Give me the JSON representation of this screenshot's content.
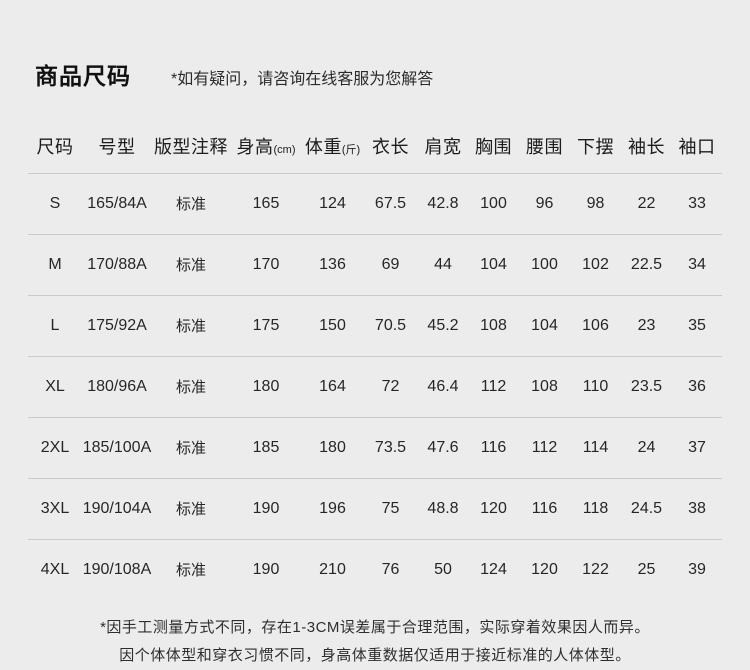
{
  "page": {
    "title": "商品尺码",
    "note": "*如有疑问，请咨询在线客服为您解答"
  },
  "colors": {
    "background": "#ececec",
    "text": "#222222",
    "divider": "#cacaca"
  },
  "table": {
    "headers": [
      {
        "label": "尺码",
        "unit": ""
      },
      {
        "label": "号型",
        "unit": ""
      },
      {
        "label": "版型注释",
        "unit": ""
      },
      {
        "label": "身高",
        "unit": "(cm)"
      },
      {
        "label": "体重",
        "unit": "(斤)"
      },
      {
        "label": "衣长",
        "unit": ""
      },
      {
        "label": "肩宽",
        "unit": ""
      },
      {
        "label": "胸围",
        "unit": ""
      },
      {
        "label": "腰围",
        "unit": ""
      },
      {
        "label": "下摆",
        "unit": ""
      },
      {
        "label": "袖长",
        "unit": ""
      },
      {
        "label": "袖口",
        "unit": ""
      }
    ],
    "rows": [
      [
        "S",
        "165/84A",
        "标准",
        "165",
        "124",
        "67.5",
        "42.8",
        "100",
        "96",
        "98",
        "22",
        "33"
      ],
      [
        "M",
        "170/88A",
        "标准",
        "170",
        "136",
        "69",
        "44",
        "104",
        "100",
        "102",
        "22.5",
        "34"
      ],
      [
        "L",
        "175/92A",
        "标准",
        "175",
        "150",
        "70.5",
        "45.2",
        "108",
        "104",
        "106",
        "23",
        "35"
      ],
      [
        "XL",
        "180/96A",
        "标准",
        "180",
        "164",
        "72",
        "46.4",
        "112",
        "108",
        "110",
        "23.5",
        "36"
      ],
      [
        "2XL",
        "185/100A",
        "标准",
        "185",
        "180",
        "73.5",
        "47.6",
        "116",
        "112",
        "114",
        "24",
        "37"
      ],
      [
        "3XL",
        "190/104A",
        "标准",
        "190",
        "196",
        "75",
        "48.8",
        "120",
        "116",
        "118",
        "24.5",
        "38"
      ],
      [
        "4XL",
        "190/108A",
        "标准",
        "190",
        "210",
        "76",
        "50",
        "124",
        "120",
        "122",
        "25",
        "39"
      ]
    ]
  },
  "footer": {
    "line1": "*因手工测量方式不同，存在1-3CM误差属于合理范围，实际穿着效果因人而异。",
    "line2": "因个体体型和穿衣习惯不同，身高体重数据仅适用于接近标准的人体体型。"
  }
}
